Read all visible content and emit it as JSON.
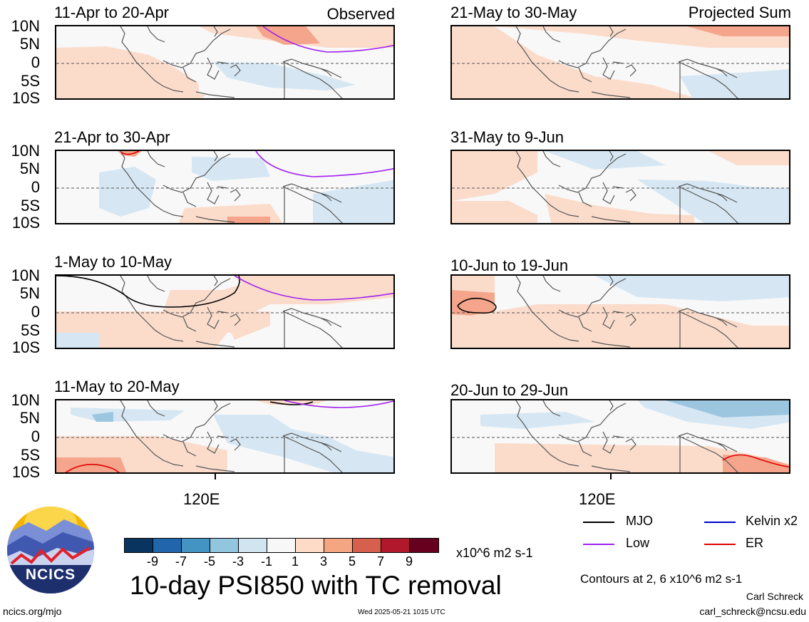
{
  "panels_left": [
    {
      "title": "11-Apr to 20-Apr",
      "tag": "Observed"
    },
    {
      "title": "21-Apr to 30-Apr",
      "tag": ""
    },
    {
      "title": "1-May to 10-May",
      "tag": ""
    },
    {
      "title": "11-May to 20-May",
      "tag": ""
    }
  ],
  "panels_right": [
    {
      "title": "21-May to 30-May",
      "tag": "Projected Sum"
    },
    {
      "title": "31-May to 9-Jun",
      "tag": ""
    },
    {
      "title": "10-Jun to 19-Jun",
      "tag": ""
    },
    {
      "title": "20-Jun to 29-Jun",
      "tag": ""
    }
  ],
  "lat_labels": [
    "10N",
    "5N",
    "0",
    "5S",
    "10S"
  ],
  "lon_label": "120E",
  "colorbar": {
    "colors": [
      "#0a3460",
      "#2166ac",
      "#4393c3",
      "#92c5de",
      "#d1e5f0",
      "#f7f7f7",
      "#fddbc7",
      "#f4a582",
      "#d6604d",
      "#b2182b",
      "#67001f"
    ],
    "labels": [
      "-9",
      "-7",
      "-5",
      "-3",
      "-1",
      "1",
      "3",
      "5",
      "7",
      "9"
    ],
    "units": "x10^6 m2 s-1"
  },
  "title": "10-day PSI850 with TC removal",
  "legend": [
    {
      "label": "MJO",
      "color": "#000000"
    },
    {
      "label": "Kelvin x2",
      "color": "#0000cc"
    },
    {
      "label": "Low",
      "color": "#a020f0"
    },
    {
      "label": "ER",
      "color": "#e00000"
    }
  ],
  "contours_note": "Contours at 2, 6 x10^6 m2 s-1",
  "author": "Carl Schreck",
  "email": "carl_schreck@ncsu.edu",
  "url": "ncics.org/mjo",
  "timestamp": "Wed 2025-05-21 1015 UTC",
  "logo_text": "NCICS"
}
